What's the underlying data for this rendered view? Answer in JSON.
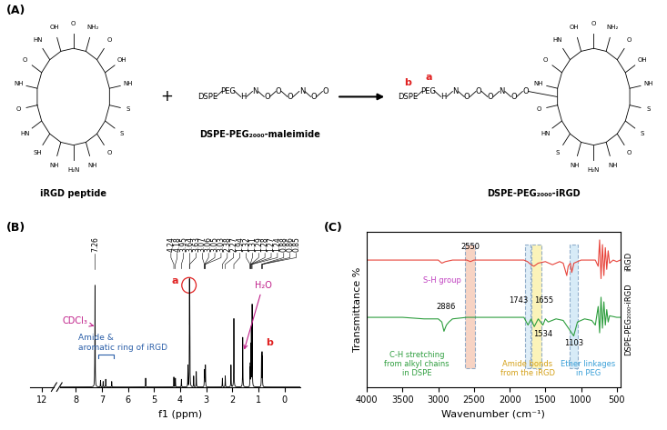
{
  "panel_a": {
    "label": "(A)",
    "plus": "+",
    "reactants": [
      {
        "name": "iRGD peptide",
        "atoms": [
          "O",
          "HN",
          "SH",
          "NH",
          "H₂N",
          "NH",
          "O",
          "S",
          "S",
          "NH",
          "OH",
          "O",
          "NH₂",
          "O",
          "OH",
          "HN",
          "O",
          "NH"
        ]
      },
      {
        "name": "DSPE-PEG₂₀₀₀-maleimide",
        "chain": [
          "DSPE",
          "PEG",
          "H",
          "N",
          "O",
          "O",
          "O",
          "N",
          "O",
          "O"
        ]
      }
    ],
    "product": {
      "name": "DSPE-PEG₂₀₀₀-iRGD",
      "marks": [
        "b",
        "a"
      ],
      "mark_color": "#e02020",
      "chain": [
        "DSPE",
        "PEG",
        "H",
        "N",
        "O",
        "O",
        "O",
        "N",
        "O",
        "O"
      ],
      "atoms": [
        "O",
        "HN",
        "S",
        "NH",
        "H₂N",
        "NH",
        "O",
        "S",
        "S",
        "NH",
        "OH",
        "O",
        "NH₂",
        "O",
        "OH",
        "HN",
        "O",
        "NH"
      ]
    }
  },
  "chart_data": [
    {
      "type": "line",
      "panel": "(B)",
      "xlabel": "f1 (ppm)",
      "xlim": [
        8.6,
        -0.6
      ],
      "xticks": [
        8,
        7,
        6,
        5,
        4,
        3,
        2,
        1,
        0
      ],
      "break_xlim": [
        12.3,
        11.7
      ],
      "break_xticks": [
        12
      ],
      "ylim": [
        0,
        140
      ],
      "tick_labels": "x",
      "color": "#000000",
      "peaks": {
        "ppm": [
          7.26,
          7.05,
          6.95,
          6.85,
          6.62,
          5.32,
          4.24,
          4.18,
          3.95,
          3.7,
          3.64,
          3.63,
          3.48,
          3.38,
          3.07,
          3.06,
          3.05,
          3.03,
          2.38,
          2.27,
          2.05,
          1.94,
          1.6,
          1.32,
          1.31,
          1.29,
          1.28,
          1.27,
          1.24,
          0.88,
          0.86,
          0.85
        ],
        "height": [
          92,
          6,
          5,
          7,
          5,
          8,
          9,
          8,
          7,
          20,
          98,
          88,
          10,
          14,
          14,
          16,
          15,
          20,
          8,
          10,
          20,
          62,
          45,
          18,
          22,
          30,
          40,
          55,
          75,
          30,
          32,
          28
        ]
      },
      "peak_labels": [
        7.26,
        4.24,
        4.18,
        3.95,
        3.64,
        3.63,
        3.07,
        3.06,
        3.05,
        3.03,
        2.38,
        2.27,
        1.94,
        1.32,
        1.31,
        1.29,
        1.28,
        1.27,
        1.24,
        0.88,
        0.86,
        0.85
      ],
      "annotations": [
        {
          "text": "CDCl₃",
          "color": "#c0208a"
        },
        {
          "text": "Amide &\naromatic ring of iRGD",
          "color": "#2a5ea8"
        },
        {
          "text": "H₂O",
          "color": "#c0208a"
        },
        {
          "text": "a",
          "color": "#e02020"
        },
        {
          "text": "b",
          "color": "#e02020"
        }
      ]
    },
    {
      "type": "line",
      "panel": "(C)",
      "xlabel": "Wavenumber (cm⁻¹)",
      "ylabel": "Transmittance %",
      "xlim": [
        4000,
        450
      ],
      "xticks": [
        4000,
        3500,
        3000,
        2500,
        2000,
        1500,
        1000,
        500
      ],
      "ylim": [
        0,
        100
      ],
      "tick_labels": "x",
      "series": [
        {
          "name": "iRGD",
          "color": "#e8453c",
          "x": [
            4000,
            3500,
            3000,
            2950,
            2900,
            2800,
            2600,
            2550,
            2500,
            2200,
            2000,
            1800,
            1750,
            1700,
            1660,
            1600,
            1500,
            1450,
            1400,
            1300,
            1250,
            1200,
            1180,
            1150,
            1130,
            1100,
            1000,
            900,
            800,
            760,
            740,
            720,
            700,
            680,
            660,
            640,
            620,
            600,
            550,
            500,
            450
          ],
          "values": [
            82,
            82,
            82,
            80,
            81,
            82,
            82,
            81,
            82,
            82,
            82,
            82,
            81,
            79,
            78,
            80,
            81,
            80,
            79,
            81,
            80,
            72,
            78,
            80,
            74,
            80,
            82,
            82,
            82,
            78,
            95,
            70,
            92,
            72,
            90,
            76,
            88,
            80,
            82,
            81,
            82
          ]
        },
        {
          "name": "DSPE-PEG₂₀₀₀-iRGD",
          "color": "#2e9e3e",
          "x": [
            4000,
            3500,
            3200,
            3000,
            2950,
            2920,
            2886,
            2850,
            2800,
            2600,
            2550,
            2200,
            2000,
            1800,
            1743,
            1700,
            1655,
            1600,
            1534,
            1500,
            1460,
            1350,
            1250,
            1103,
            1050,
            950,
            850,
            800,
            760,
            740,
            720,
            700,
            680,
            660,
            640,
            620,
            600,
            500,
            450
          ],
          "values": [
            45,
            45,
            44,
            44,
            42,
            36,
            40,
            42,
            44,
            45,
            45,
            45,
            45,
            45,
            40,
            44,
            39,
            44,
            40,
            44,
            42,
            44,
            43,
            33,
            42,
            44,
            43,
            40,
            52,
            35,
            58,
            38,
            55,
            40,
            50,
            42,
            46,
            45,
            45
          ]
        }
      ],
      "bands": [
        {
          "range": [
            2480,
            2620
          ],
          "color": "#f6c9b5"
        },
        {
          "range": [
            1710,
            1780
          ],
          "color": "#d6e9f5"
        },
        {
          "range": [
            1560,
            1700
          ],
          "color": "#fbf0a8"
        },
        {
          "range": [
            1050,
            1160
          ],
          "color": "#cde6f5"
        }
      ],
      "peak_labels": [
        2550,
        2886,
        1743,
        1655,
        1534,
        1103
      ],
      "annotations": [
        {
          "text": "S-H group",
          "color": "#c040c0"
        },
        {
          "text": "C-H stretching\nfrom alkyl chains\nin DSPE",
          "color": "#2e9e3e"
        },
        {
          "text": "Amide bonds\nfrom the iRGD",
          "color": "#d4a017"
        },
        {
          "text": "Ether linkages\nin PEG",
          "color": "#3aa0d8"
        }
      ]
    }
  ]
}
